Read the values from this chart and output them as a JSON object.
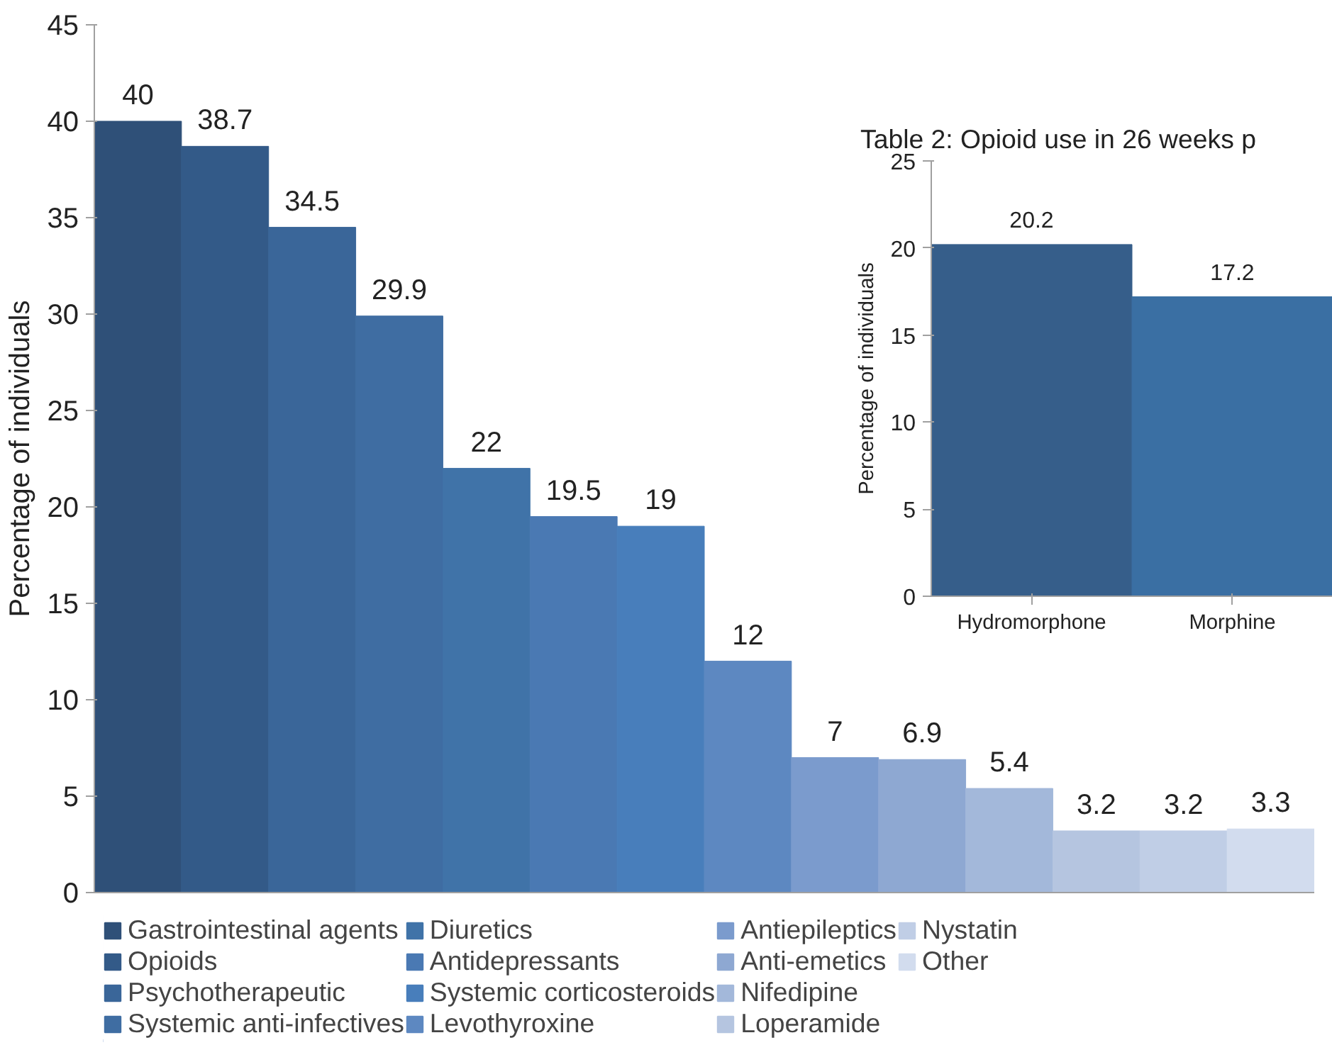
{
  "chart_data": [
    {
      "type": "bar",
      "ylabel": "Percentage of individuals",
      "categories": [
        null,
        null,
        null,
        null,
        null,
        null,
        null,
        null,
        null,
        null,
        null,
        null,
        null,
        null
      ],
      "ylim": [
        0,
        45
      ],
      "yticks": [
        0,
        5,
        10,
        15,
        20,
        25,
        30,
        35,
        40,
        45
      ],
      "grid": false,
      "legend": "bottom",
      "data_labels": true,
      "series": [
        {
          "name": "Gastrointestinal agents",
          "color": "#2f5078",
          "values": [
            40,
            null,
            null,
            null,
            null,
            null,
            null,
            null,
            null,
            null,
            null,
            null,
            null,
            null
          ]
        },
        {
          "name": "Opioids",
          "color": "#335a88",
          "values": [
            null,
            38.7,
            null,
            null,
            null,
            null,
            null,
            null,
            null,
            null,
            null,
            null,
            null,
            null
          ]
        },
        {
          "name": "Psychotherapeutic",
          "color": "#3a6699",
          "values": [
            null,
            null,
            34.5,
            null,
            null,
            null,
            null,
            null,
            null,
            null,
            null,
            null,
            null,
            null
          ]
        },
        {
          "name": "Systemic anti-infectives",
          "color": "#3f6da2",
          "values": [
            null,
            null,
            null,
            29.9,
            null,
            null,
            null,
            null,
            null,
            null,
            null,
            null,
            null,
            null
          ]
        },
        {
          "name": "Diuretics",
          "color": "#4073a8",
          "values": [
            null,
            null,
            null,
            null,
            22,
            null,
            null,
            null,
            null,
            null,
            null,
            null,
            null,
            null
          ]
        },
        {
          "name": "Antidepressants",
          "color": "#4a79b3",
          "values": [
            null,
            null,
            null,
            null,
            null,
            19.5,
            null,
            null,
            null,
            null,
            null,
            null,
            null,
            null
          ]
        },
        {
          "name": "Systemic corticosteroids",
          "color": "#487ebb",
          "values": [
            null,
            null,
            null,
            null,
            null,
            null,
            19,
            null,
            null,
            null,
            null,
            null,
            null,
            null
          ]
        },
        {
          "name": "Levothyroxine",
          "color": "#5d88c1",
          "values": [
            null,
            null,
            null,
            null,
            null,
            null,
            null,
            12,
            null,
            null,
            null,
            null,
            null,
            null
          ]
        },
        {
          "name": "Antiepileptics",
          "color": "#7b9bcd",
          "values": [
            null,
            null,
            null,
            null,
            null,
            null,
            null,
            null,
            7,
            null,
            null,
            null,
            null,
            null
          ]
        },
        {
          "name": "Anti-emetics",
          "color": "#8ea8d2",
          "values": [
            null,
            null,
            null,
            null,
            null,
            null,
            null,
            null,
            null,
            6.9,
            null,
            null,
            null,
            null
          ]
        },
        {
          "name": "Nifedipine",
          "color": "#a3b8da",
          "values": [
            null,
            null,
            null,
            null,
            null,
            null,
            null,
            null,
            null,
            null,
            5.4,
            null,
            null,
            null
          ]
        },
        {
          "name": "Loperamide",
          "color": "#b5c5e0",
          "values": [
            null,
            null,
            null,
            null,
            null,
            null,
            null,
            null,
            null,
            null,
            null,
            3.2,
            null,
            null
          ]
        },
        {
          "name": "Nystatin",
          "color": "#c0cee6",
          "values": [
            null,
            null,
            null,
            null,
            null,
            null,
            null,
            null,
            null,
            null,
            null,
            null,
            3.2,
            null
          ]
        },
        {
          "name": "Other",
          "color": "#d2dcee",
          "values": [
            null,
            null,
            null,
            null,
            null,
            null,
            null,
            null,
            null,
            null,
            null,
            null,
            null,
            3.3
          ]
        }
      ]
    },
    {
      "type": "bar",
      "title": "Table 2: Opioid use in 26 weeks p",
      "ylabel": "Percentage of individuals",
      "categories": [
        "Hydromorphone",
        "Morphine"
      ],
      "values": [
        20.2,
        17.2
      ],
      "colors": [
        "#365e8a",
        "#3a6fa3"
      ],
      "ylim": [
        0,
        25
      ],
      "yticks": [
        0,
        5,
        10,
        15,
        20,
        25
      ],
      "grid": false,
      "data_labels": true
    }
  ]
}
